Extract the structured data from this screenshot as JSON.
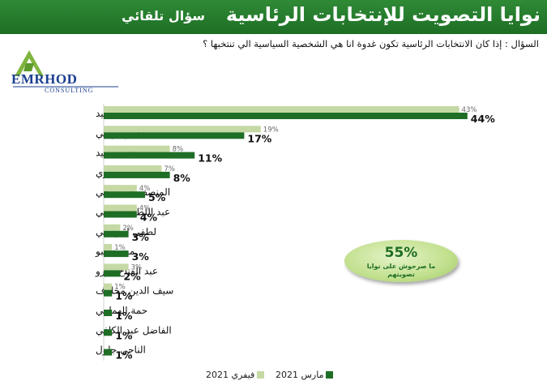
{
  "header": {
    "title": "نوايا التصويت للإنتخابات الرئاسية",
    "subtitle": "سؤال تلقائي"
  },
  "question": "السؤال : إذا كان الانتخابات الرئاسية تكون غدوة انا هي الشخصية السياسية الي تنتخبها ؟",
  "logo": {
    "name": "EMRHOD",
    "tagline": "CONSULTING"
  },
  "callout": {
    "value": "55%",
    "caption": "ما صرحوش على نوايا تصويتهم"
  },
  "colors": {
    "february": "#c5d9a4",
    "march": "#1e6e25",
    "header": "#2a8233"
  },
  "chart_data": {
    "type": "bar",
    "orientation": "horizontal",
    "categories": [
      "قيس سعيد",
      "عبير موسي",
      "صافي سعيد",
      "نبيل القروي",
      "المنصف المرزوقي",
      "عبد اللطيف المكي",
      "لطفي لمرايحي",
      "محمد عبو",
      "عبد الفتاح مورو",
      "سيف الدين مخلوف",
      "حمة الهمامي",
      "الفاضل عبد الكافي",
      "الناجي جلول"
    ],
    "series": [
      {
        "name": "فيفري 2021",
        "values": [
          43,
          19,
          8,
          7,
          4,
          4,
          2,
          1,
          3,
          1,
          null,
          null,
          null
        ],
        "labels": [
          "43%",
          "19%",
          "8%",
          "7%",
          "4%",
          "4%",
          "2%",
          "1%",
          "3%",
          "1%",
          "",
          "",
          ""
        ]
      },
      {
        "name": "مارس 2021",
        "values": [
          44,
          17,
          11,
          8,
          5,
          4,
          3,
          3,
          2,
          1,
          1,
          1,
          1
        ],
        "labels": [
          "44%",
          "17%",
          "11%",
          "8%",
          "5%",
          "4%",
          "3%",
          "3%",
          "2%",
          "1%",
          "1%",
          "1%",
          "1%"
        ]
      }
    ],
    "legend": "bottom",
    "grid": false
  }
}
